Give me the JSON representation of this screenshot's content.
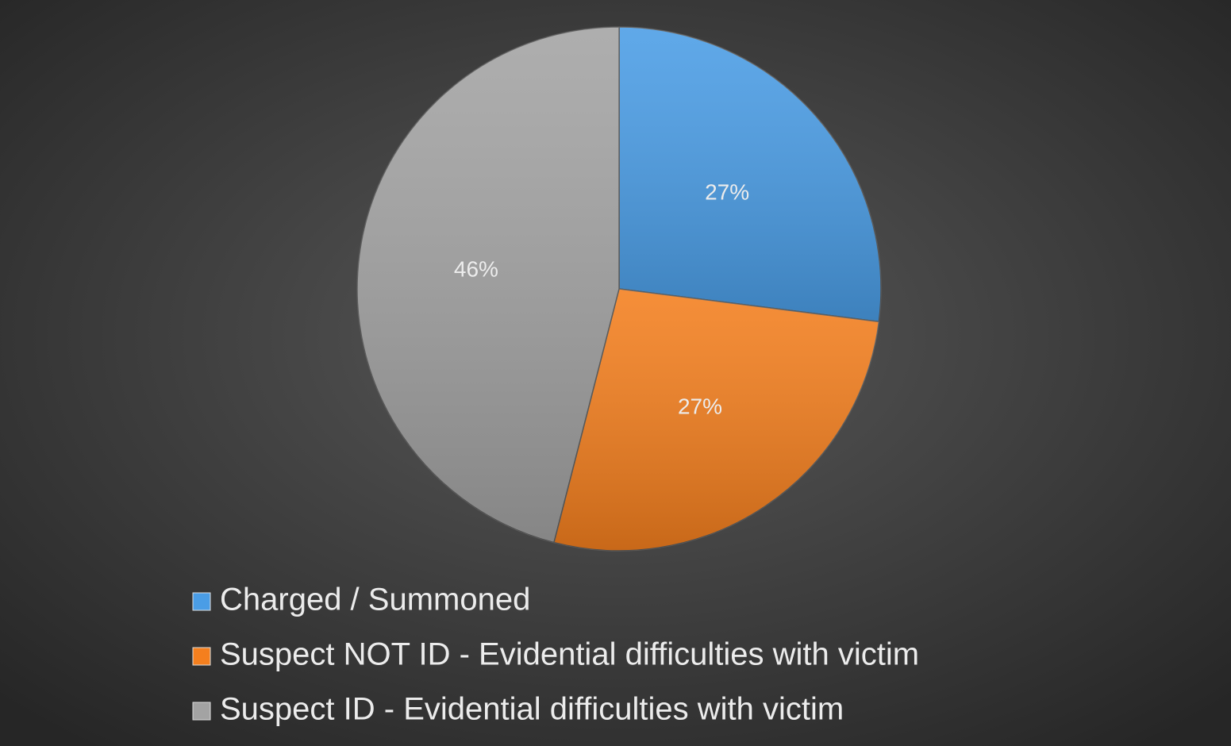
{
  "chart_data": {
    "type": "pie",
    "categories": [
      "Charged / Summoned",
      "Suspect NOT ID - Evidential difficulties with victim",
      "Suspect ID - Evidential difficulties with victim"
    ],
    "values": [
      27,
      27,
      46
    ],
    "value_labels": [
      "27%",
      "27%",
      "46%"
    ],
    "colors": [
      "#4a9de6",
      "#f47f1e",
      "#a3a3a3"
    ],
    "legend": "bottom"
  }
}
